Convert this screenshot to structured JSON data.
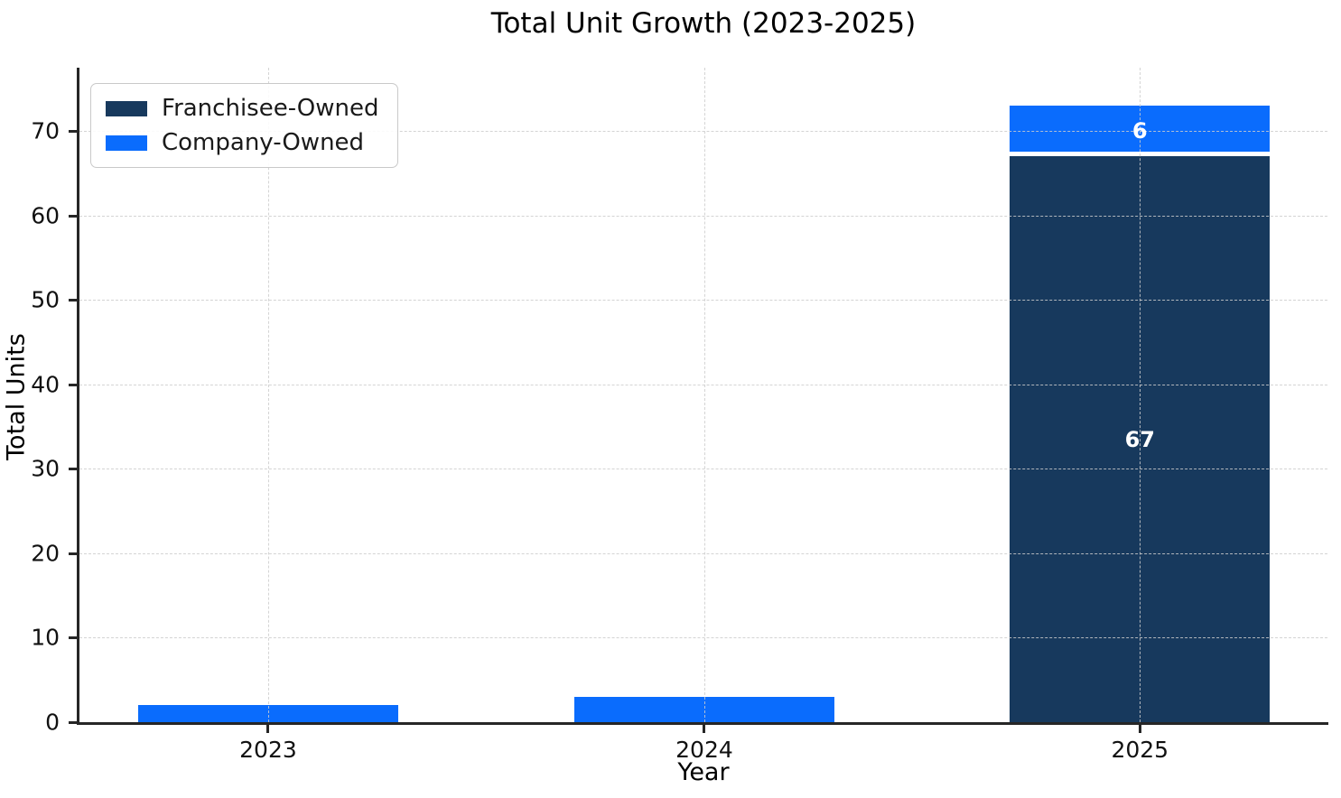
{
  "title": "Total Unit Growth (2023-2025)",
  "axes": {
    "xlabel": "Year",
    "ylabel": "Total Units",
    "yticks": [
      0,
      10,
      20,
      30,
      40,
      50,
      60,
      70
    ]
  },
  "colors": {
    "franchisee": "#17395d",
    "company": "#0a6cfd",
    "grid": "#cdcdcd",
    "spine": "#262626",
    "bar_label_text": "#ffffff"
  },
  "chart_data": {
    "type": "bar",
    "stacked": true,
    "title": "Total Unit Growth (2023-2025)",
    "xlabel": "Year",
    "ylabel": "Total Units",
    "categories": [
      "2023",
      "2024",
      "2025"
    ],
    "series": [
      {
        "name": "Franchisee-Owned",
        "color": "#17395d",
        "values": [
          0,
          0,
          67
        ],
        "bar_labels": [
          "",
          "",
          "67"
        ]
      },
      {
        "name": "Company-Owned",
        "color": "#0a6cfd",
        "values": [
          2,
          3,
          6
        ],
        "bar_labels": [
          "",
          "",
          "6"
        ]
      }
    ],
    "totals": [
      2,
      3,
      73
    ],
    "ylim": [
      0,
      77.5
    ],
    "grid": {
      "visible": true,
      "axis": "both",
      "style": "dashed"
    },
    "legend_position": "upper left"
  }
}
